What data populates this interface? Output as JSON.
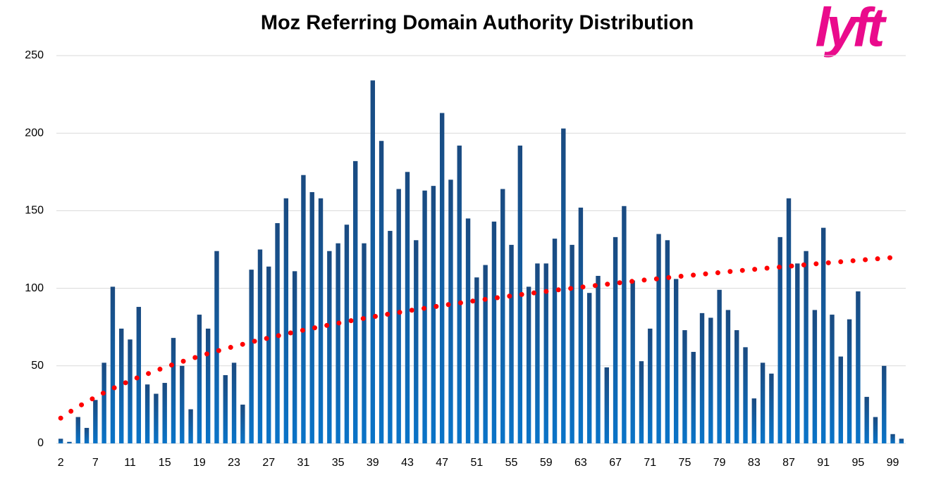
{
  "chart_data": {
    "type": "bar",
    "title": "Moz Referring Domain Authority Distribution",
    "logo": "lyft",
    "logo_color": "#ea0b8c",
    "categories": [
      2,
      null,
      null,
      null,
      7,
      null,
      null,
      null,
      11,
      null,
      null,
      null,
      15,
      null,
      null,
      null,
      19,
      null,
      null,
      null,
      23,
      null,
      null,
      null,
      27,
      null,
      null,
      null,
      31,
      null,
      null,
      null,
      35,
      null,
      null,
      null,
      39,
      null,
      null,
      null,
      43,
      null,
      null,
      null,
      47,
      null,
      null,
      null,
      51,
      null,
      null,
      null,
      55,
      null,
      null,
      null,
      59,
      null,
      null,
      null,
      63,
      null,
      null,
      null,
      67,
      null,
      null,
      null,
      71,
      null,
      null,
      null,
      75,
      null,
      null,
      null,
      79,
      null,
      null,
      null,
      83,
      null,
      null,
      null,
      87,
      null,
      null,
      null,
      91,
      null,
      null,
      null,
      95,
      null,
      null,
      null,
      99,
      null
    ],
    "values": [
      3,
      1,
      17,
      10,
      28,
      52,
      101,
      74,
      67,
      88,
      38,
      32,
      39,
      68,
      50,
      22,
      83,
      74,
      124,
      44,
      52,
      25,
      112,
      125,
      114,
      142,
      158,
      111,
      173,
      162,
      158,
      124,
      129,
      141,
      182,
      129,
      234,
      195,
      137,
      164,
      175,
      131,
      163,
      166,
      213,
      170,
      192,
      145,
      107,
      115,
      143,
      164,
      128,
      192,
      101,
      116,
      116,
      132,
      203,
      128,
      152,
      97,
      108,
      49,
      133,
      153,
      105,
      53,
      74,
      135,
      131,
      106,
      73,
      59,
      84,
      81,
      99,
      86,
      73,
      62,
      29,
      52,
      45,
      133,
      158,
      116,
      124,
      86,
      139,
      83,
      56,
      80,
      98,
      30,
      17,
      50,
      6,
      3
    ],
    "gradient": [
      "#1a4a80",
      "#0a74c8"
    ],
    "trendline": {
      "color": "#ff0000",
      "values": [
        16.3,
        20.1,
        23.6,
        26.8,
        29.8,
        32.7,
        35.4,
        37.9,
        40.4,
        42.7,
        44.8,
        46.9,
        49.0,
        50.9,
        52.7,
        54.5,
        56.2,
        57.9,
        59.5,
        61.0,
        62.5,
        63.9,
        65.4,
        66.7,
        68.0,
        69.3,
        70.6,
        71.8,
        73.0,
        74.2,
        75.3,
        76.4,
        77.5,
        78.6,
        79.6,
        80.6,
        81.6,
        82.6,
        83.5,
        84.4,
        85.4,
        86.3,
        87.1,
        88.0,
        88.9,
        89.7,
        90.5,
        91.3,
        92.1,
        92.9,
        93.6,
        94.4,
        95.1,
        95.9,
        96.6,
        97.3,
        98.0,
        98.7,
        99.4,
        100.0,
        100.7,
        101.3,
        102.0,
        102.6,
        103.2,
        103.9,
        104.5,
        105.1,
        105.7,
        106.2,
        106.8,
        107.4,
        108.0,
        108.5,
        109.1,
        109.6,
        110.1,
        110.7,
        111.2,
        111.7,
        112.2,
        112.7,
        113.3,
        113.7,
        114.2,
        114.7,
        115.2,
        115.7,
        116.2,
        116.6,
        117.1,
        117.6,
        118.0,
        118.5,
        118.9,
        119.4,
        119.8,
        120.2
      ]
    },
    "ylim": [
      0,
      250
    ],
    "yticks": [
      0,
      50,
      100,
      150,
      200,
      250
    ],
    "grid": true
  }
}
